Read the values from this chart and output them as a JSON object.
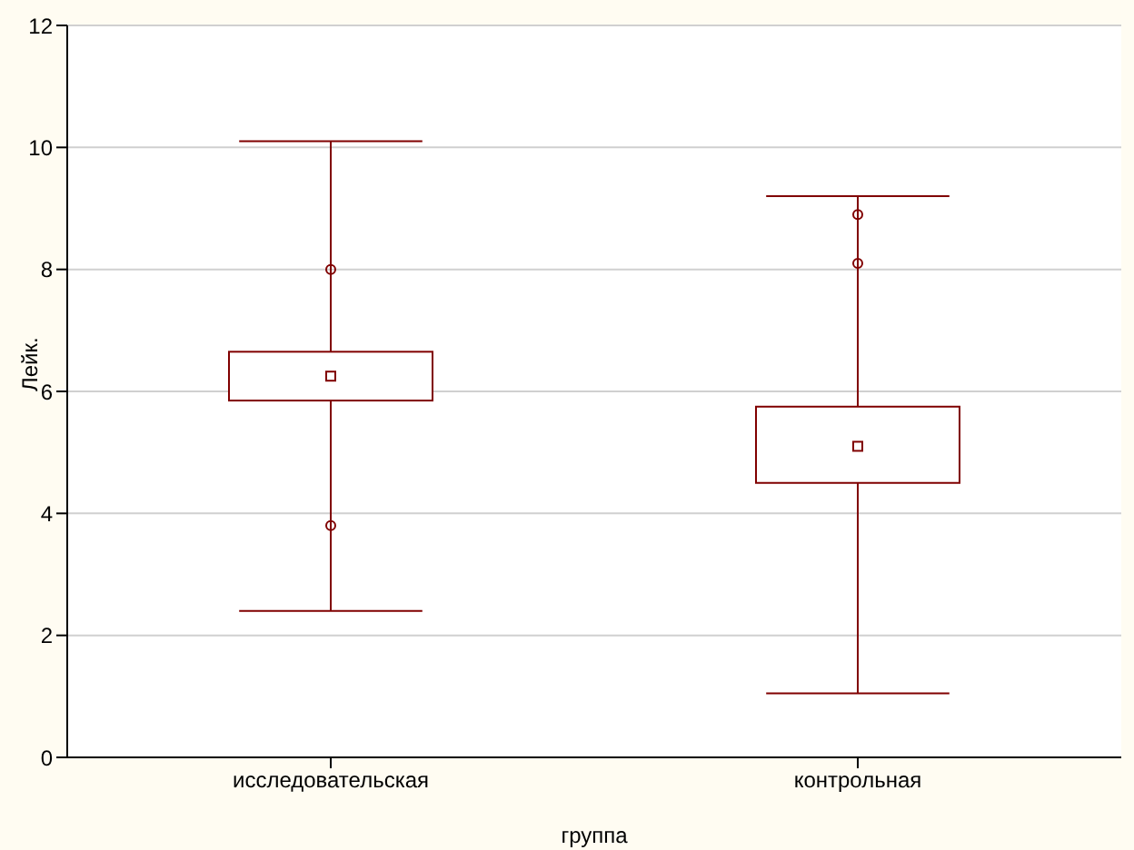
{
  "chart_data": {
    "type": "box",
    "xlabel": "группа",
    "ylabel": "Лейк.",
    "categories": [
      "исследовательская",
      "контрольная"
    ],
    "boxes": [
      {
        "low": 2.4,
        "q1": 5.85,
        "median": 6.25,
        "q3": 6.65,
        "high": 10.1,
        "outliers": [
          8,
          3.8
        ]
      },
      {
        "low": 1.05,
        "q1": 4.5,
        "median": 5.1,
        "q3": 5.75,
        "high": 9.2,
        "outliers": [
          8.9,
          8.1
        ]
      }
    ],
    "color": "#800000",
    "ylim": [
      0,
      12
    ],
    "yticks": [
      0,
      2,
      4,
      6,
      8,
      10,
      12
    ],
    "grid": "y"
  }
}
